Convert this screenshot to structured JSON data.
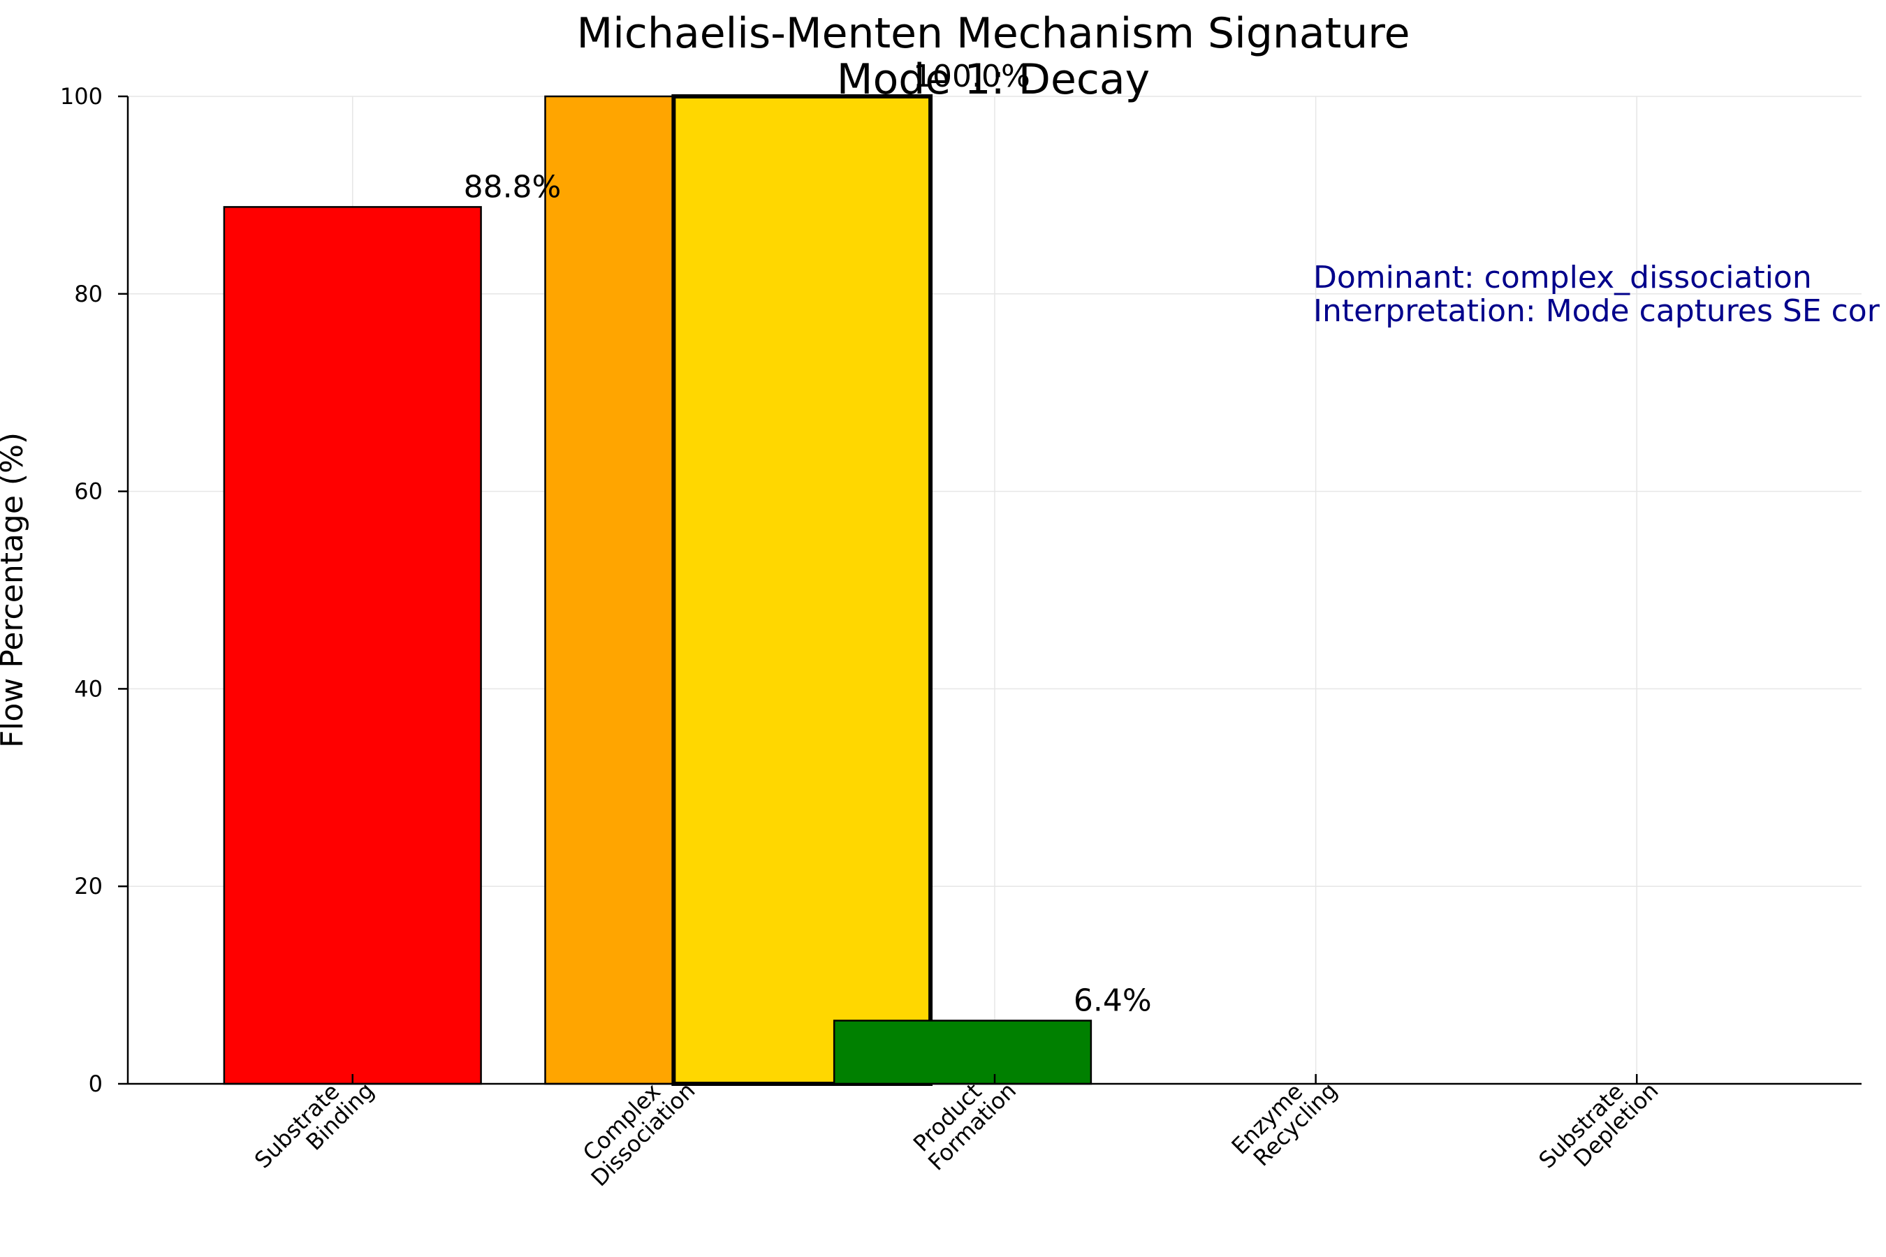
{
  "chart_data": {
    "type": "bar",
    "title": "Michaelis-Menten Mechanism Signature",
    "subtitle": "Mode 1: Decay",
    "xlabel": "",
    "ylabel": "Flow Percentage (%)",
    "ylim": [
      0,
      100
    ],
    "yticks": [
      "0",
      "20",
      "40",
      "60",
      "80",
      "100"
    ],
    "grid": true,
    "legend": "none",
    "categories": [
      [
        "Substrate",
        "Binding"
      ],
      [
        "Complex",
        "Dissociation"
      ],
      [
        "Product",
        "Formation"
      ],
      [
        "Enzyme",
        "Recycling"
      ],
      [
        "Substrate",
        "Depletion"
      ]
    ],
    "bars": [
      {
        "x_center": 1.0,
        "value": 88.8,
        "label": "88.8%",
        "color": "#ff0000",
        "highlight": false
      },
      {
        "x_center": 2.0,
        "value": 100.0,
        "label": "",
        "color": "#ffa500",
        "highlight": false
      },
      {
        "x_center": 2.4,
        "value": 100.0,
        "label": "100.0%",
        "color": "#ffd700",
        "highlight": true
      },
      {
        "x_center": 2.9,
        "value": 6.4,
        "label": "6.4%",
        "color": "#008000",
        "highlight": false
      },
      {
        "x_center": 4.0,
        "value": 0.0,
        "label": "",
        "color": "#000000",
        "highlight": false
      },
      {
        "x_center": 5.0,
        "value": 0.0,
        "label": "",
        "color": "#000000",
        "highlight": false
      }
    ],
    "annotation": {
      "lines": [
        "Dominant: complex_dissociation",
        "Interpretation: Mode captures SE cor"
      ],
      "color": "#00008b"
    }
  }
}
